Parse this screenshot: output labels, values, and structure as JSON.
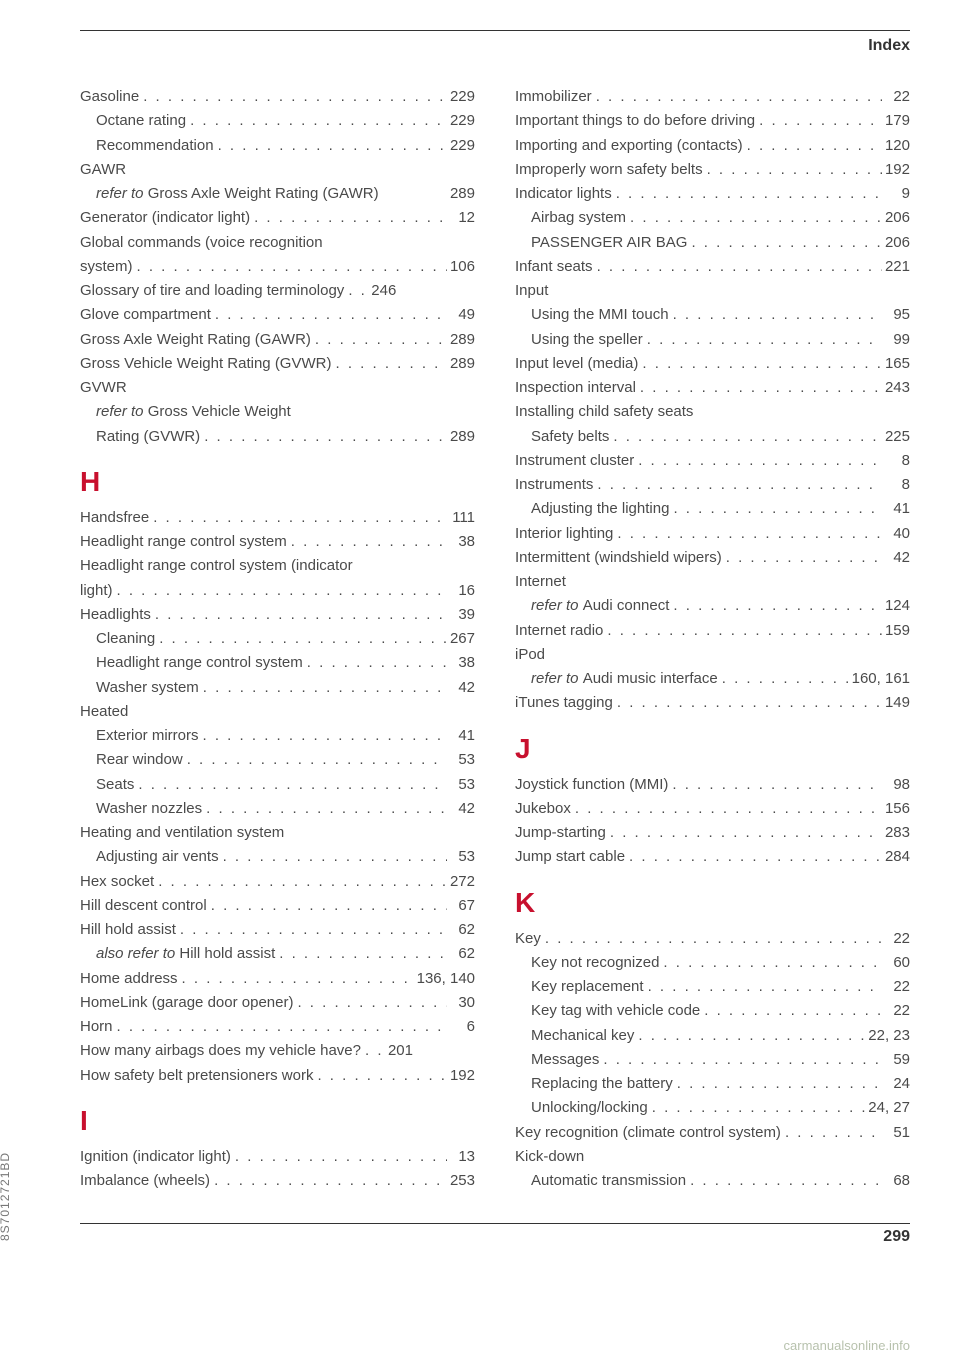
{
  "header": {
    "title": "Index"
  },
  "footer": {
    "page": "299",
    "side_code": "8S7012721BD",
    "watermark": "carmanualsonline.info"
  },
  "left": [
    {
      "label": "Gasoline",
      "page": "229"
    },
    {
      "label": "Octane rating",
      "page": "229",
      "indent": true
    },
    {
      "label": "Recommendation",
      "page": "229",
      "indent": true
    },
    {
      "label": "GAWR",
      "nodots": true
    },
    {
      "label_prefix_italic": "refer to ",
      "label": "Gross Axle Weight Rating (GAWR)",
      "page": "289",
      "indent": true,
      "nodots": true
    },
    {
      "label": "Generator (indicator light)",
      "page": "12"
    },
    {
      "label": "Global commands (voice recognition",
      "nodots": true
    },
    {
      "label": "system)",
      "page": "106"
    },
    {
      "label": "Glossary of tire and loading terminology",
      "page": "246",
      "shortdots": true
    },
    {
      "label": "Glove compartment",
      "page": "49"
    },
    {
      "label": "Gross Axle Weight Rating (GAWR)",
      "page": "289"
    },
    {
      "label": "Gross Vehicle Weight Rating (GVWR)",
      "page": "289"
    },
    {
      "label": "GVWR",
      "nodots": true
    },
    {
      "label_prefix_italic": "refer to ",
      "label": "Gross Vehicle Weight",
      "indent": true,
      "nodots": true
    },
    {
      "label": "Rating (GVWR)",
      "page": "289",
      "indent": true
    },
    {
      "section": "H"
    },
    {
      "label": "Handsfree",
      "page": "111"
    },
    {
      "label": "Headlight range control system",
      "page": "38"
    },
    {
      "label": "Headlight range control system (indicator",
      "nodots": true
    },
    {
      "label": "light)",
      "page": "16"
    },
    {
      "label": "Headlights",
      "page": "39"
    },
    {
      "label": "Cleaning",
      "page": "267",
      "indent": true
    },
    {
      "label": "Headlight range control system",
      "page": "38",
      "indent": true
    },
    {
      "label": "Washer system",
      "page": "42",
      "indent": true
    },
    {
      "label": "Heated",
      "nodots": true
    },
    {
      "label": "Exterior mirrors",
      "page": "41",
      "indent": true
    },
    {
      "label": "Rear window",
      "page": "53",
      "indent": true
    },
    {
      "label": "Seats",
      "page": "53",
      "indent": true
    },
    {
      "label": "Washer nozzles",
      "page": "42",
      "indent": true
    },
    {
      "label": "Heating and ventilation system",
      "nodots": true
    },
    {
      "label": "Adjusting air vents",
      "page": "53",
      "indent": true
    },
    {
      "label": "Hex socket",
      "page": "272"
    },
    {
      "label": "Hill descent control",
      "page": "67"
    },
    {
      "label": "Hill hold assist",
      "page": "62"
    },
    {
      "label_prefix_italic": "also refer to ",
      "label": "Hill hold assist",
      "page": "62",
      "indent": true
    },
    {
      "label": "Home address",
      "page": "136, 140"
    },
    {
      "label": "HomeLink (garage door opener)",
      "page": "30"
    },
    {
      "label": "Horn",
      "page": "6"
    },
    {
      "label": "How many airbags does my vehicle have?",
      "page": "201",
      "shortdots": true
    },
    {
      "label": "How safety belt pretensioners work",
      "page": "192"
    },
    {
      "section": "I"
    },
    {
      "label": "Ignition (indicator light)",
      "page": "13"
    },
    {
      "label": "Imbalance (wheels)",
      "page": "253"
    }
  ],
  "right": [
    {
      "label": "Immobilizer",
      "page": "22"
    },
    {
      "label": "Important things to do before driving",
      "page": "179"
    },
    {
      "label": "Importing and exporting (contacts)",
      "page": "120"
    },
    {
      "label": "Improperly worn safety belts",
      "page": "192"
    },
    {
      "label": "Indicator lights",
      "page": "9"
    },
    {
      "label": "Airbag system",
      "page": "206",
      "indent": true
    },
    {
      "label": "PASSENGER AIR BAG",
      "page": "206",
      "indent": true
    },
    {
      "label": "Infant seats",
      "page": "221"
    },
    {
      "label": "Input",
      "nodots": true
    },
    {
      "label": "Using the MMI touch",
      "page": "95",
      "indent": true
    },
    {
      "label": "Using the speller",
      "page": "99",
      "indent": true
    },
    {
      "label": "Input level (media)",
      "page": "165"
    },
    {
      "label": "Inspection interval",
      "page": "243"
    },
    {
      "label": "Installing child safety seats",
      "nodots": true
    },
    {
      "label": "Safety belts",
      "page": "225",
      "indent": true
    },
    {
      "label": "Instrument cluster",
      "page": "8"
    },
    {
      "label": "Instruments",
      "page": "8"
    },
    {
      "label": "Adjusting the lighting",
      "page": "41",
      "indent": true
    },
    {
      "label": "Interior lighting",
      "page": "40"
    },
    {
      "label": "Intermittent (windshield wipers)",
      "page": "42"
    },
    {
      "label": "Internet",
      "nodots": true
    },
    {
      "label_prefix_italic": "refer to ",
      "label": "Audi connect",
      "page": "124",
      "indent": true
    },
    {
      "label": "Internet radio",
      "page": "159"
    },
    {
      "label": "iPod",
      "nodots": true
    },
    {
      "label_prefix_italic": "refer to ",
      "label": "Audi music interface",
      "page": "160, 161",
      "indent": true
    },
    {
      "label": "iTunes tagging",
      "page": "149"
    },
    {
      "section": "J"
    },
    {
      "label": "Joystick function (MMI)",
      "page": "98"
    },
    {
      "label": "Jukebox",
      "page": "156"
    },
    {
      "label": "Jump-starting",
      "page": "283"
    },
    {
      "label": "Jump start cable",
      "page": "284"
    },
    {
      "section": "K"
    },
    {
      "label": "Key",
      "page": "22"
    },
    {
      "label": "Key not recognized",
      "page": "60",
      "indent": true
    },
    {
      "label": "Key replacement",
      "page": "22",
      "indent": true
    },
    {
      "label": "Key tag with vehicle code",
      "page": "22",
      "indent": true
    },
    {
      "label": "Mechanical key",
      "page": "22, 23",
      "indent": true
    },
    {
      "label": "Messages",
      "page": "59",
      "indent": true
    },
    {
      "label": "Replacing the battery",
      "page": "24",
      "indent": true
    },
    {
      "label": "Unlocking/locking",
      "page": "24, 27",
      "indent": true
    },
    {
      "label": "Key recognition (climate control system)",
      "page": "51"
    },
    {
      "label": "Kick-down",
      "nodots": true
    },
    {
      "label": "Automatic transmission",
      "page": "68",
      "indent": true
    }
  ]
}
